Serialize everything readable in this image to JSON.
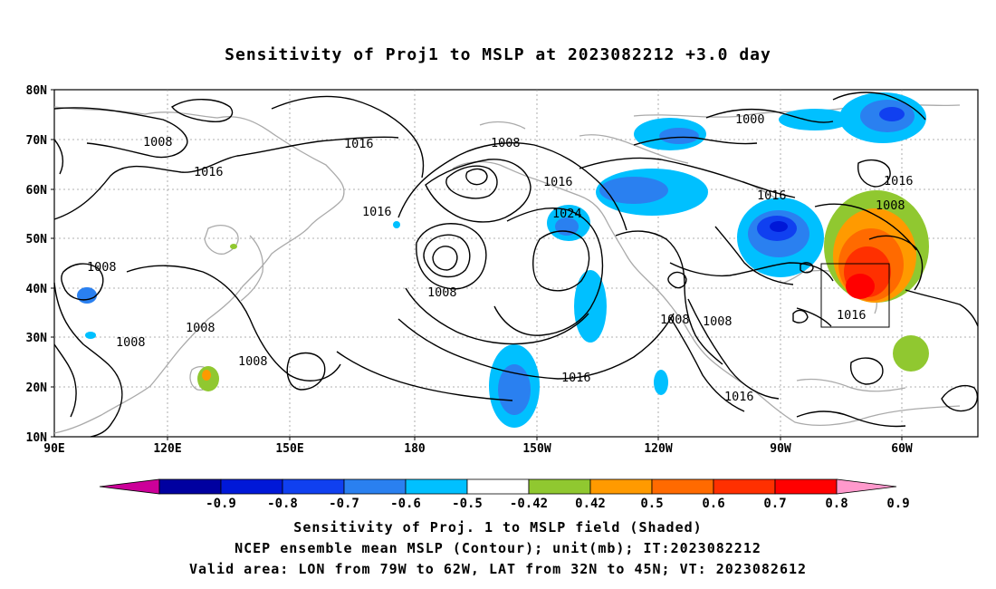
{
  "title": "Sensitivity of Proj1 to MSLP at 2023082212 +3.0 day",
  "map": {
    "lat_labels": [
      "80N",
      "70N",
      "60N",
      "50N",
      "40N",
      "30N",
      "20N",
      "10N"
    ],
    "lon_labels": [
      "90E",
      "120E",
      "150E",
      "180",
      "150W",
      "120W",
      "90W",
      "60W"
    ],
    "isobar_labels": [
      {
        "text": "1008"
      },
      {
        "text": "1016"
      },
      {
        "text": "1016"
      },
      {
        "text": "1008"
      },
      {
        "text": "1016"
      },
      {
        "text": "1008"
      },
      {
        "text": "1008"
      },
      {
        "text": "1008"
      },
      {
        "text": "1008"
      },
      {
        "text": "1016"
      },
      {
        "text": "1016"
      },
      {
        "text": "1024"
      },
      {
        "text": "1008"
      },
      {
        "text": "1008"
      },
      {
        "text": "1000"
      },
      {
        "text": "1016"
      },
      {
        "text": "1008"
      },
      {
        "text": "1008"
      },
      {
        "text": "1016"
      },
      {
        "text": "1016"
      },
      {
        "text": "1016"
      },
      {
        "text": "1016"
      }
    ],
    "valid_area": {
      "lon_from": "79W",
      "lon_to": "62W",
      "lat_from": "32N",
      "lat_to": "45N"
    }
  },
  "colorbar": {
    "labels": [
      "-0.9",
      "-0.8",
      "-0.7",
      "-0.6",
      "-0.5",
      "-0.42",
      "0.42",
      "0.5",
      "0.6",
      "0.7",
      "0.8",
      "0.9"
    ],
    "colors": [
      "#cc0099",
      "#0000a0",
      "#0018d8",
      "#1040f0",
      "#2a80f0",
      "#00c0ff",
      "#ffffff",
      "#90c830",
      "#ff9a00",
      "#ff6a00",
      "#ff3000",
      "#ff0000",
      "#ff99cc"
    ]
  },
  "footer": {
    "line1": "Sensitivity of Proj. 1 to MSLP field (Shaded)",
    "line2": "NCEP ensemble mean MSLP (Contour); unit(mb); IT:2023082212",
    "line3": "Valid area: LON from 79W to 62W, LAT from 32N to 45N; VT: 2023082612"
  }
}
